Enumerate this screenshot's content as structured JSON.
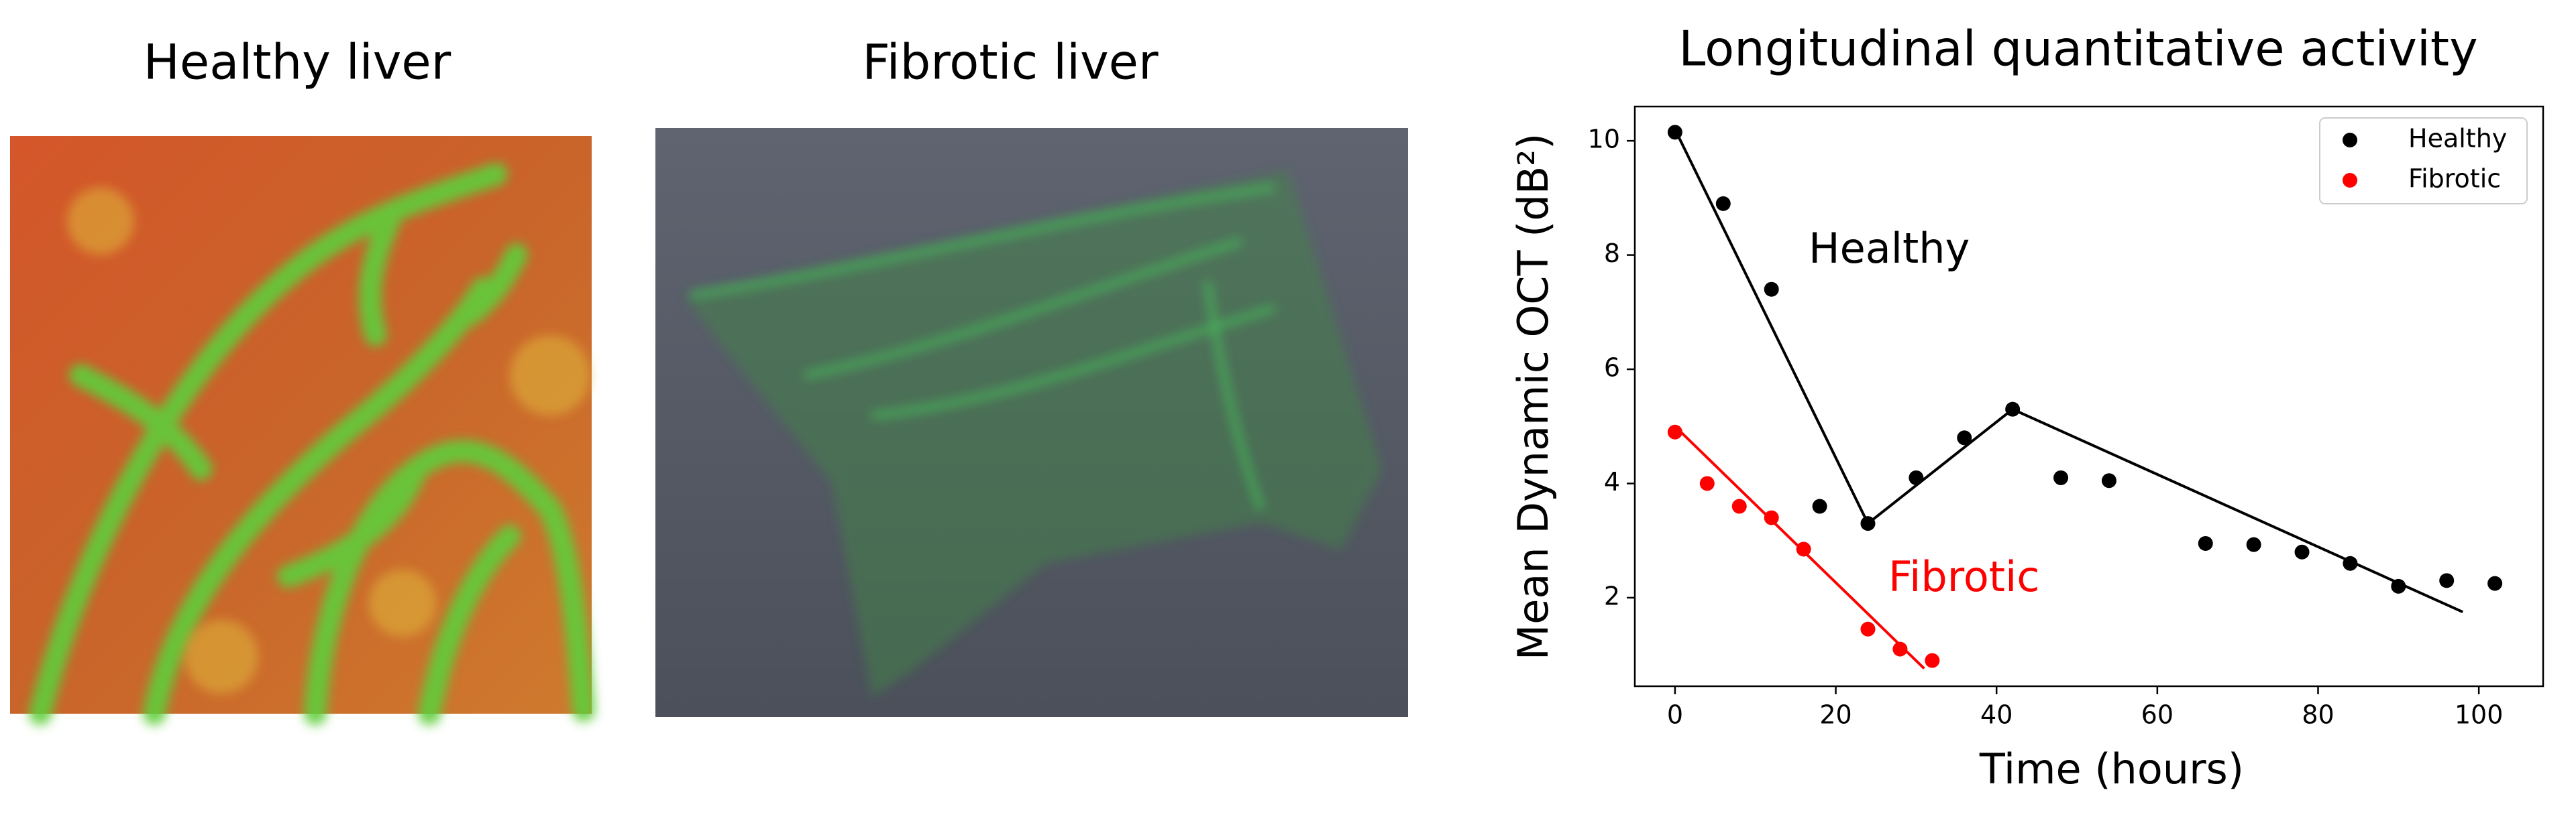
{
  "panels": [
    {
      "title": "Healthy liver"
    },
    {
      "title": "Fibrotic liver"
    }
  ],
  "chart_data": {
    "type": "scatter",
    "title": "Longitudinal quantitative activity",
    "x_label": "Time (hours)",
    "y_label": "Mean Dynamic OCT (dB²)",
    "xlim": [
      -5,
      108
    ],
    "ylim": [
      0.45,
      10.6
    ],
    "xticks": [
      0,
      20,
      40,
      60,
      80,
      100
    ],
    "yticks": [
      2,
      4,
      6,
      8,
      10
    ],
    "grid": false,
    "legend": "upper right",
    "series": [
      {
        "name": "Healthy",
        "color": "#000000",
        "x": [
          0,
          6,
          12,
          18,
          24,
          30,
          36,
          42,
          48,
          54,
          66,
          72,
          78,
          84,
          90,
          96,
          102
        ],
        "values": [
          10.15,
          8.9,
          7.4,
          3.6,
          3.3,
          4.1,
          4.8,
          5.3,
          4.1,
          4.05,
          2.95,
          2.93,
          2.8,
          2.6,
          2.2,
          2.3,
          2.25
        ],
        "fit": {
          "x": [
            0,
            24,
            42,
            98
          ],
          "values": [
            10.2,
            3.3,
            5.3,
            1.75
          ]
        }
      },
      {
        "name": "Fibrotic",
        "color": "#ff0000",
        "x": [
          0,
          4,
          8,
          12,
          16,
          24,
          28,
          32
        ],
        "values": [
          4.9,
          4.0,
          3.6,
          3.4,
          2.85,
          1.45,
          1.1,
          0.9
        ],
        "fit": {
          "x": [
            0,
            31
          ],
          "values": [
            5.0,
            0.76
          ]
        }
      }
    ],
    "annotations": [
      {
        "text": "Healthy",
        "color": "#000000"
      },
      {
        "text": "Fibrotic",
        "color": "#ff0000"
      }
    ]
  }
}
